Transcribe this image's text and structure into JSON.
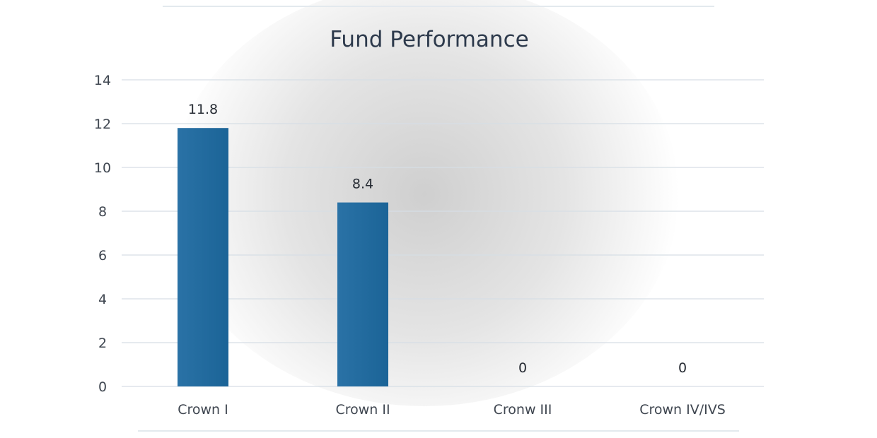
{
  "chart_data": {
    "type": "bar",
    "title": "Fund Performance",
    "categories": [
      "Crown I",
      "Crown II",
      "Cronw III",
      "Crown IV/IVS"
    ],
    "values": [
      11.8,
      8.4,
      0,
      0
    ],
    "data_labels": [
      "11.8",
      "8.4",
      "0",
      "0"
    ],
    "y_ticks": [
      "0",
      "2",
      "4",
      "6",
      "8",
      "10",
      "12",
      "14"
    ],
    "ylim": [
      0,
      14
    ],
    "xlabel": "",
    "ylabel": "",
    "grid": true,
    "legend": "none",
    "colors": {
      "bar": "#1b6497",
      "bar_light": "#2a72a6",
      "gridline": "#d6dee5",
      "title": "#2d3a4c",
      "text": "#3f4650",
      "background_glow": "#cfcfcf"
    }
  }
}
